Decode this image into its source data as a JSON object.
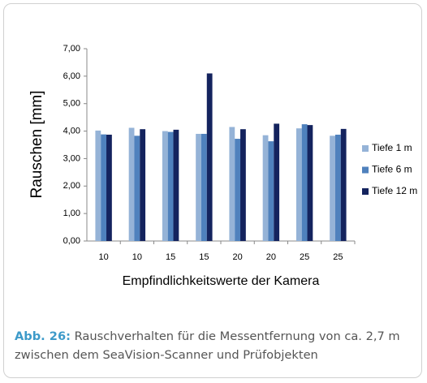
{
  "chart_data": {
    "type": "bar",
    "ylabel": "Rauschen  [mm]",
    "xlabel": "Empfindlichkeitswerte der Kamera",
    "categories": [
      "10",
      "10",
      "15",
      "15",
      "20",
      "20",
      "25",
      "25"
    ],
    "series": [
      {
        "name": "Tiefe 1 m",
        "color": "#95b3d7",
        "values": [
          4.02,
          4.12,
          4.0,
          3.9,
          4.15,
          3.85,
          4.1,
          3.83
        ]
      },
      {
        "name": "Tiefe 6 m",
        "color": "#4f81bd",
        "values": [
          3.88,
          3.83,
          3.97,
          3.9,
          3.72,
          3.63,
          4.25,
          3.87
        ]
      },
      {
        "name": "Tiefe 12 m",
        "color": "#14235e",
        "values": [
          3.87,
          4.07,
          4.05,
          6.1,
          4.07,
          4.27,
          4.22,
          4.08
        ]
      }
    ],
    "ylim": [
      0,
      7
    ],
    "yticks": [
      {
        "value": 0,
        "label": "0,00"
      },
      {
        "value": 1,
        "label": "1,00"
      },
      {
        "value": 2,
        "label": "2,00"
      },
      {
        "value": 3,
        "label": "3,00"
      },
      {
        "value": 4,
        "label": "4,00"
      },
      {
        "value": 5,
        "label": "5,00"
      },
      {
        "value": 6,
        "label": "6,00"
      },
      {
        "value": 7,
        "label": "7,00"
      }
    ],
    "grid": false,
    "legend": "right"
  },
  "caption": {
    "label": "Abb. 26:",
    "text": "Rauschverhalten für die Messentfernung von ca. 2,7 m zwischen dem SeaVision-Scanner und Prüfobjekten"
  }
}
